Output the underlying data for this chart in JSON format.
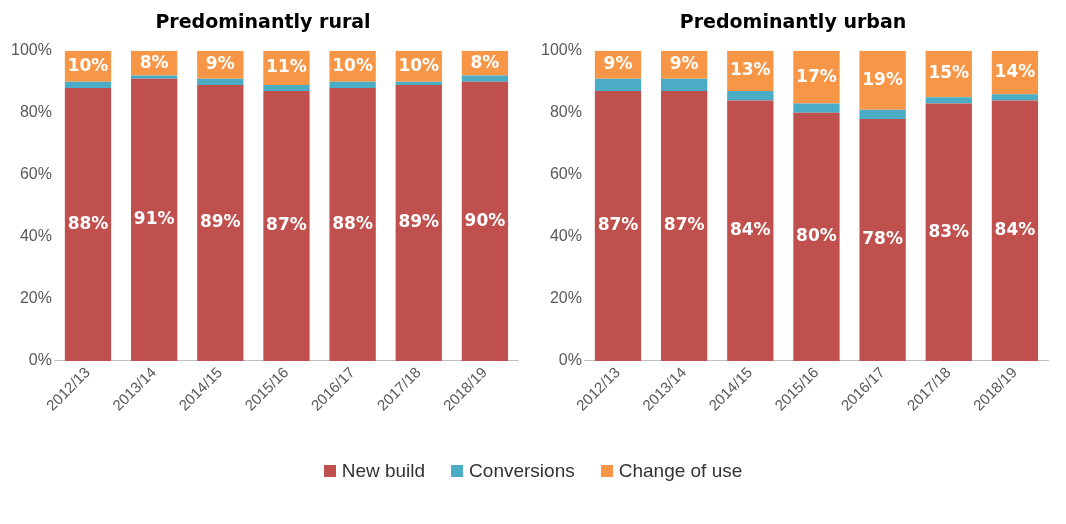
{
  "chart_data": [
    {
      "type": "bar",
      "title": "Predominantly rural",
      "stacked": true,
      "categories": [
        "2012/13",
        "2013/14",
        "2014/15",
        "2015/16",
        "2016/17",
        "2017/18",
        "2018/19"
      ],
      "ylim": [
        0,
        100
      ],
      "yticks": [
        {
          "value": 0,
          "label": "0%"
        },
        {
          "value": 20,
          "label": "20%"
        },
        {
          "value": 40,
          "label": "40%"
        },
        {
          "value": 60,
          "label": "60%"
        },
        {
          "value": 80,
          "label": "80%"
        },
        {
          "value": 100,
          "label": "100%"
        }
      ],
      "grid": false,
      "legend": "bottom",
      "series": [
        {
          "name": "New build",
          "color": "#c0504d",
          "values": [
            88,
            91,
            89,
            87,
            88,
            89,
            90
          ],
          "value_labels": [
            "88%",
            "91%",
            "89%",
            "87%",
            "88%",
            "89%",
            "90%"
          ]
        },
        {
          "name": "Conversions",
          "color": "#4bacc6",
          "values": [
            2,
            1,
            2,
            2,
            2,
            1,
            2
          ]
        },
        {
          "name": "Change of use",
          "color": "#f79646",
          "values": [
            10,
            8,
            9,
            11,
            10,
            10,
            8
          ],
          "value_labels": [
            "10%",
            "8%",
            "9%",
            "11%",
            "10%",
            "10%",
            "8%"
          ]
        }
      ]
    },
    {
      "type": "bar",
      "title": "Predominantly urban",
      "stacked": true,
      "categories": [
        "2012/13",
        "2013/14",
        "2014/15",
        "2015/16",
        "2016/17",
        "2017/18",
        "2018/19"
      ],
      "ylim": [
        0,
        100
      ],
      "yticks": [
        {
          "value": 0,
          "label": "0%"
        },
        {
          "value": 20,
          "label": "20%"
        },
        {
          "value": 40,
          "label": "40%"
        },
        {
          "value": 60,
          "label": "60%"
        },
        {
          "value": 80,
          "label": "80%"
        },
        {
          "value": 100,
          "label": "100%"
        }
      ],
      "grid": false,
      "series": [
        {
          "color": "#c0504d",
          "values": [
            87,
            87,
            84,
            80,
            78,
            83,
            84
          ],
          "value_labels": [
            "87%",
            "87%",
            "84%",
            "80%",
            "78%",
            "83%",
            "84%"
          ]
        },
        {
          "color": "#4bacc6",
          "values": [
            4,
            4,
            3,
            3,
            3,
            2,
            2
          ]
        },
        {
          "color": "#f79646",
          "values": [
            9,
            9,
            13,
            17,
            19,
            15,
            14
          ],
          "value_labels": [
            "9%",
            "9%",
            "13%",
            "17%",
            "19%",
            "15%",
            "14%"
          ]
        }
      ]
    }
  ]
}
